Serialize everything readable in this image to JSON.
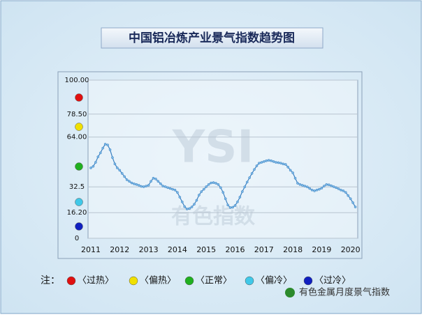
{
  "chart_data": {
    "type": "line",
    "title": "中国铝冶炼产业景气指数趋势图",
    "watermark": "有色指数",
    "watermark_logo": "YSI",
    "footer": "有色金属月度景气指数",
    "legend_title": "注：",
    "zones": [
      {
        "label": "〈过热〉",
        "color": "#e01010"
      },
      {
        "label": "〈偏热〉",
        "color": "#f0e000"
      },
      {
        "label": "〈正常〉",
        "color": "#20b020"
      },
      {
        "label": "〈偏冷〉",
        "color": "#40c8e8"
      },
      {
        "label": "〈过冷〉",
        "color": "#1020c0"
      }
    ],
    "color": "#3a7fc0",
    "grid": true,
    "ylim": [
      0,
      100
    ],
    "yticks": [
      0,
      {
        "value": 16.2,
        "label": "16.20"
      },
      32.5,
      {
        "value": 64,
        "label": "64.00"
      },
      {
        "value": 78.5,
        "label": "78.50"
      },
      {
        "value": 100,
        "label": "100.00"
      }
    ],
    "categories": [
      "2011",
      null,
      null,
      null,
      null,
      null,
      null,
      null,
      null,
      null,
      null,
      null,
      "2012",
      null,
      null,
      null,
      null,
      null,
      null,
      null,
      null,
      null,
      null,
      null,
      "2013",
      null,
      null,
      null,
      null,
      null,
      null,
      null,
      null,
      null,
      null,
      null,
      "2014",
      null,
      null,
      null,
      null,
      null,
      null,
      null,
      null,
      null,
      null,
      null,
      "2015",
      null,
      null,
      null,
      null,
      null,
      null,
      null,
      null,
      null,
      null,
      null,
      "2016",
      null,
      null,
      null,
      null,
      null,
      null,
      null,
      null,
      null,
      null,
      null,
      "2017",
      null,
      null,
      null,
      null,
      null,
      null,
      null,
      null,
      null,
      null,
      null,
      "2018",
      null,
      null,
      null,
      null,
      null,
      null,
      null,
      null,
      null,
      null,
      null,
      "2019",
      null,
      null,
      null,
      null,
      null,
      null,
      null,
      null,
      null,
      null,
      null,
      "2020",
      null,
      null
    ],
    "values": [
      44.5,
      45.5,
      48,
      51.5,
      54,
      57,
      59.5,
      59,
      56,
      51,
      47,
      44.5,
      43,
      41,
      39,
      37,
      36,
      35,
      34.4,
      34,
      33.5,
      32.8,
      32.6,
      33,
      33.5,
      36,
      38,
      37.5,
      36,
      34.5,
      33,
      32.6,
      32,
      31.5,
      31,
      30.5,
      29,
      26,
      23,
      20,
      18.5,
      18.8,
      19.8,
      21.5,
      24,
      27.3,
      29.5,
      31,
      32.6,
      34,
      35,
      35.2,
      34.8,
      34,
      32,
      29,
      25,
      21,
      19.4,
      19.6,
      20.7,
      23,
      26,
      29.5,
      32.5,
      35.5,
      38.3,
      41,
      43.5,
      45.8,
      47.5,
      48,
      48.5,
      49,
      49.3,
      49,
      48.5,
      48,
      47.8,
      47.5,
      47,
      46.7,
      45,
      43,
      41.4,
      38,
      34.8,
      34,
      33.5,
      33,
      32.5,
      31.5,
      30.5,
      30,
      30.5,
      31,
      31.7,
      33,
      34,
      33.8,
      33.2,
      32.6,
      32,
      31.3,
      30.5,
      30,
      29,
      27,
      25,
      22.5,
      19.8
    ]
  }
}
